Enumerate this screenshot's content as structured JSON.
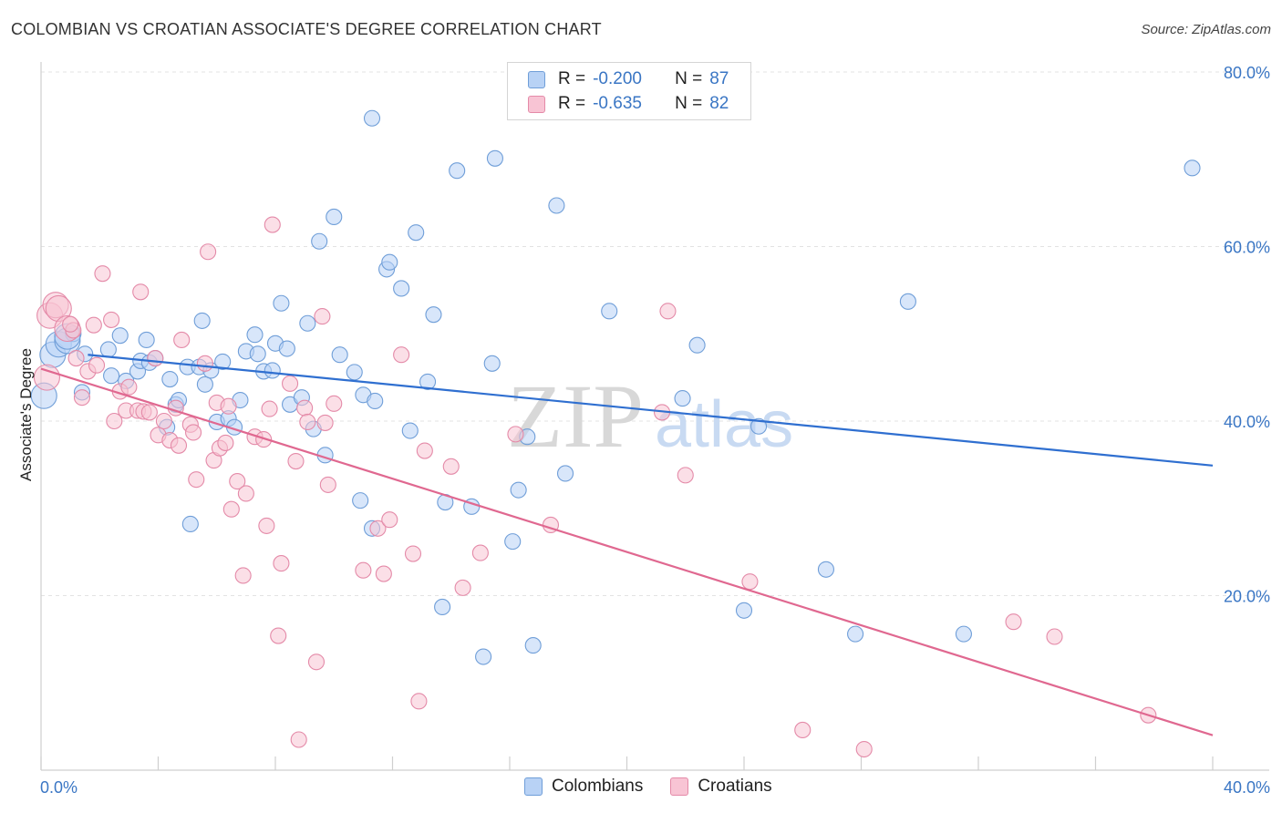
{
  "header": {
    "title": "COLOMBIAN VS CROATIAN ASSOCIATE'S DEGREE CORRELATION CHART",
    "source": "Source: ZipAtlas.com"
  },
  "watermark": {
    "zip": "ZIP",
    "atlas": "atlas"
  },
  "legend": {
    "rows": [
      {
        "r_label": "R =",
        "r_value": "-0.200",
        "n_label": "N =",
        "n_value": "87"
      },
      {
        "r_label": "R =",
        "r_value": "-0.635",
        "n_label": "N =",
        "n_value": "82"
      }
    ],
    "bottom": [
      {
        "label": "Colombians"
      },
      {
        "label": "Croatians"
      }
    ]
  },
  "colors": {
    "colombians_fill": "#b8d2f5",
    "colombians_stroke": "#6f9ed8",
    "colombians_line": "#2f6fd0",
    "croatians_fill": "#f8c4d4",
    "croatians_stroke": "#e48aa8",
    "croatians_line": "#e06890",
    "grid": "#e3e3e3",
    "axis_text": "#3a76c4"
  },
  "chart_data": {
    "type": "scatter",
    "title": "COLOMBIAN VS CROATIAN ASSOCIATE'S DEGREE CORRELATION CHART",
    "xlabel": "",
    "ylabel": "Associate's Degree",
    "xlim": [
      0,
      40
    ],
    "ylim": [
      0,
      80
    ],
    "x_tick_labels": [
      "0.0%",
      "40.0%"
    ],
    "y_ticks": [
      20,
      40,
      60,
      80
    ],
    "y_tick_labels": [
      "20.0%",
      "40.0%",
      "60.0%",
      "80.0%"
    ],
    "grid": true,
    "series": [
      {
        "name": "Colombians",
        "r": -0.2,
        "n": 87,
        "trend": {
          "x": [
            1.6,
            40
          ],
          "y": [
            47.6,
            34.9
          ]
        },
        "points": [
          [
            0.1,
            42.9
          ],
          [
            0.4,
            47.6
          ],
          [
            0.6,
            48.8
          ],
          [
            0.9,
            49.2
          ],
          [
            1.1,
            50.0
          ],
          [
            0.9,
            49.7
          ],
          [
            1.5,
            47.7
          ],
          [
            1.4,
            43.3
          ],
          [
            2.3,
            48.2
          ],
          [
            2.7,
            49.8
          ],
          [
            2.4,
            45.2
          ],
          [
            2.9,
            44.6
          ],
          [
            3.3,
            45.7
          ],
          [
            3.4,
            46.9
          ],
          [
            3.7,
            46.7
          ],
          [
            3.6,
            49.3
          ],
          [
            3.9,
            47.2
          ],
          [
            4.3,
            39.3
          ],
          [
            4.4,
            44.8
          ],
          [
            4.6,
            41.9
          ],
          [
            4.7,
            42.4
          ],
          [
            5.0,
            46.2
          ],
          [
            5.1,
            28.2
          ],
          [
            5.4,
            46.2
          ],
          [
            5.5,
            51.5
          ],
          [
            5.6,
            44.2
          ],
          [
            5.8,
            45.8
          ],
          [
            6.0,
            39.9
          ],
          [
            6.2,
            46.8
          ],
          [
            6.4,
            40.3
          ],
          [
            6.6,
            39.3
          ],
          [
            6.8,
            42.4
          ],
          [
            7.0,
            48.0
          ],
          [
            7.3,
            49.9
          ],
          [
            7.4,
            47.7
          ],
          [
            7.6,
            45.7
          ],
          [
            7.9,
            45.8
          ],
          [
            8.0,
            48.9
          ],
          [
            8.2,
            53.5
          ],
          [
            8.4,
            48.3
          ],
          [
            8.5,
            41.9
          ],
          [
            8.9,
            42.7
          ],
          [
            9.1,
            51.2
          ],
          [
            9.3,
            39.1
          ],
          [
            9.5,
            60.6
          ],
          [
            9.7,
            36.1
          ],
          [
            10.0,
            63.4
          ],
          [
            10.2,
            47.6
          ],
          [
            10.7,
            45.6
          ],
          [
            10.9,
            30.9
          ],
          [
            11.0,
            43.0
          ],
          [
            11.3,
            27.7
          ],
          [
            11.4,
            42.3
          ],
          [
            11.3,
            74.7
          ],
          [
            11.8,
            57.4
          ],
          [
            11.9,
            58.2
          ],
          [
            12.3,
            55.2
          ],
          [
            12.6,
            38.9
          ],
          [
            12.8,
            61.6
          ],
          [
            13.2,
            44.5
          ],
          [
            13.4,
            52.2
          ],
          [
            13.7,
            18.7
          ],
          [
            13.8,
            30.7
          ],
          [
            14.2,
            68.7
          ],
          [
            14.7,
            30.2
          ],
          [
            15.1,
            13.0
          ],
          [
            15.4,
            46.6
          ],
          [
            15.5,
            70.1
          ],
          [
            16.1,
            26.2
          ],
          [
            16.3,
            32.1
          ],
          [
            16.6,
            38.2
          ],
          [
            16.8,
            14.3
          ],
          [
            17.6,
            64.7
          ],
          [
            17.9,
            34.0
          ],
          [
            19.4,
            52.6
          ],
          [
            21.9,
            42.6
          ],
          [
            22.4,
            48.7
          ],
          [
            24.0,
            18.3
          ],
          [
            24.5,
            39.4
          ],
          [
            26.8,
            23.0
          ],
          [
            27.8,
            15.6
          ],
          [
            29.6,
            53.7
          ],
          [
            31.5,
            15.6
          ],
          [
            39.3,
            69.0
          ]
        ]
      },
      {
        "name": "Croatians",
        "r": -0.635,
        "n": 82,
        "trend": {
          "x": [
            0,
            40
          ],
          "y": [
            46.0,
            4.0
          ]
        },
        "points": [
          [
            0.2,
            45.0
          ],
          [
            0.3,
            52.1
          ],
          [
            0.5,
            53.3
          ],
          [
            0.6,
            52.9
          ],
          [
            0.9,
            50.6
          ],
          [
            1.1,
            50.4
          ],
          [
            1.0,
            51.1
          ],
          [
            1.2,
            47.2
          ],
          [
            1.4,
            42.7
          ],
          [
            1.6,
            45.7
          ],
          [
            1.8,
            51.0
          ],
          [
            1.9,
            46.4
          ],
          [
            2.1,
            56.9
          ],
          [
            2.4,
            51.6
          ],
          [
            2.5,
            40.0
          ],
          [
            2.7,
            43.4
          ],
          [
            2.9,
            41.2
          ],
          [
            3.0,
            43.9
          ],
          [
            3.3,
            41.2
          ],
          [
            3.4,
            54.8
          ],
          [
            3.5,
            41.1
          ],
          [
            3.7,
            41.0
          ],
          [
            3.9,
            47.2
          ],
          [
            4.0,
            38.4
          ],
          [
            4.2,
            40.0
          ],
          [
            4.4,
            37.8
          ],
          [
            4.6,
            41.5
          ],
          [
            4.7,
            37.2
          ],
          [
            4.8,
            49.3
          ],
          [
            5.1,
            39.6
          ],
          [
            5.2,
            38.7
          ],
          [
            5.3,
            33.3
          ],
          [
            5.6,
            46.6
          ],
          [
            5.7,
            59.4
          ],
          [
            5.9,
            35.5
          ],
          [
            6.0,
            42.1
          ],
          [
            6.1,
            36.9
          ],
          [
            6.3,
            37.5
          ],
          [
            6.4,
            41.7
          ],
          [
            6.5,
            29.9
          ],
          [
            6.7,
            33.1
          ],
          [
            6.9,
            22.3
          ],
          [
            7.0,
            31.7
          ],
          [
            7.3,
            38.2
          ],
          [
            7.6,
            37.9
          ],
          [
            7.8,
            41.4
          ],
          [
            7.7,
            28.0
          ],
          [
            7.9,
            62.5
          ],
          [
            8.2,
            23.7
          ],
          [
            8.1,
            15.4
          ],
          [
            8.5,
            44.3
          ],
          [
            8.7,
            35.4
          ],
          [
            8.8,
            3.5
          ],
          [
            9.0,
            41.5
          ],
          [
            9.1,
            39.9
          ],
          [
            9.4,
            12.4
          ],
          [
            9.6,
            52.0
          ],
          [
            9.7,
            39.8
          ],
          [
            9.8,
            32.7
          ],
          [
            10.0,
            42.0
          ],
          [
            11.0,
            22.9
          ],
          [
            11.5,
            27.7
          ],
          [
            11.7,
            22.5
          ],
          [
            11.9,
            28.7
          ],
          [
            12.3,
            47.6
          ],
          [
            12.7,
            24.8
          ],
          [
            12.9,
            7.9
          ],
          [
            13.1,
            36.6
          ],
          [
            14.0,
            34.8
          ],
          [
            14.4,
            20.9
          ],
          [
            15.0,
            24.9
          ],
          [
            16.2,
            38.5
          ],
          [
            17.4,
            28.1
          ],
          [
            21.4,
            52.6
          ],
          [
            21.2,
            41.0
          ],
          [
            22.0,
            33.8
          ],
          [
            24.2,
            21.6
          ],
          [
            26.0,
            4.6
          ],
          [
            28.1,
            2.4
          ],
          [
            33.2,
            17.0
          ],
          [
            34.6,
            15.3
          ],
          [
            37.8,
            6.3
          ]
        ]
      }
    ]
  }
}
